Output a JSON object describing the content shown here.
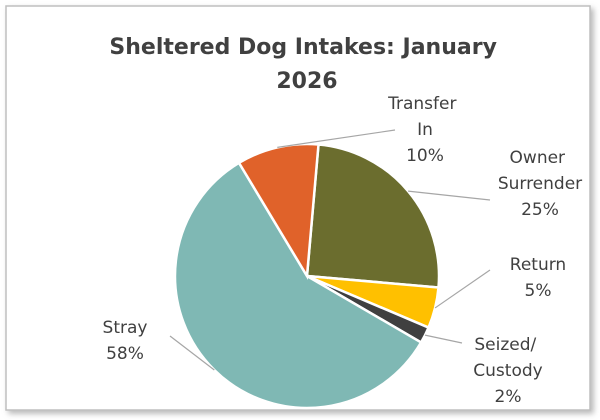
{
  "chart_data": {
    "type": "pie",
    "title": "Sheltered Dog Intakes: January 2026",
    "categories": [
      "Owner Surrender",
      "Return",
      "Seized/ Custody",
      "Stray",
      "Transfer In"
    ],
    "values": [
      25,
      5,
      2,
      58,
      10
    ],
    "value_labels": [
      "25%",
      "5%",
      "2%",
      "58%",
      "10%"
    ],
    "colors": [
      "#6b6d2e",
      "#ffc000",
      "#404040",
      "#7fb8b4",
      "#e0622a"
    ]
  }
}
